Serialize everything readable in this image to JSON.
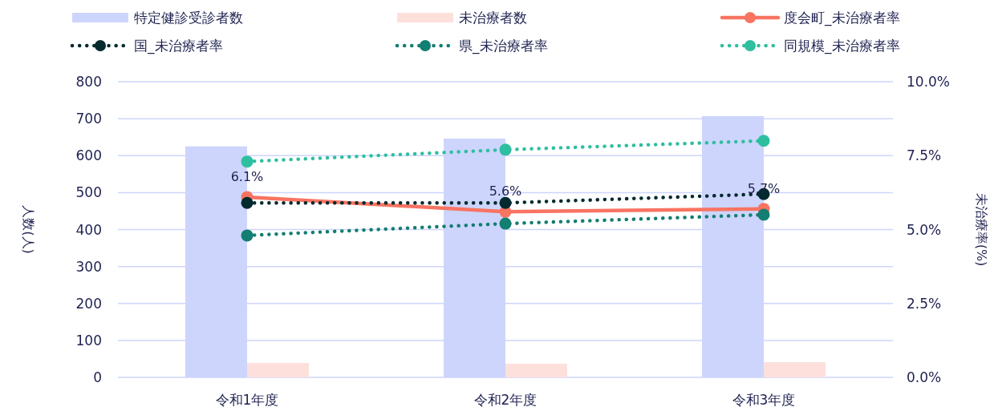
{
  "chart_data": {
    "type": "bar",
    "categories": [
      "令和1年度",
      "令和2年度",
      "令和3年度"
    ],
    "ylabel": "人数(人)",
    "y2label": "未治療率(%)",
    "ylim": [
      0,
      800
    ],
    "yticks": [
      0,
      100,
      200,
      300,
      400,
      500,
      600,
      700,
      800
    ],
    "y2lim": [
      0,
      10
    ],
    "y2ticks": [
      {
        "value": 0,
        "label": "0.0%"
      },
      {
        "value": 2.5,
        "label": "2.5%"
      },
      {
        "value": 5,
        "label": "5.0%"
      },
      {
        "value": 7.5,
        "label": "7.5%"
      },
      {
        "value": 10,
        "label": "10.0%"
      }
    ],
    "grid": "y",
    "legend": "top",
    "series": [
      {
        "name": "特定健診受診者数",
        "color": "#cdd5fc",
        "values": [
          625,
          646,
          707
        ]
      },
      {
        "name": "未治療者数",
        "color": "#fde0dc",
        "values": [
          39,
          37,
          41
        ]
      },
      {
        "name": "度会町_未治療者率",
        "type": "line",
        "axis": "y2",
        "color": "#f87462",
        "line_style": "solid",
        "marker": "circle",
        "values": [
          6.1,
          5.6,
          5.7
        ],
        "value_labels": [
          "6.1%",
          "5.6%",
          "5.7%"
        ]
      },
      {
        "name": "国_未治療者率",
        "type": "line",
        "axis": "y2",
        "color": "#032a2e",
        "line_style": "dotted",
        "marker": "circle",
        "values": [
          5.9,
          5.9,
          6.2
        ]
      },
      {
        "name": "県_未治療者率",
        "type": "line",
        "axis": "y2",
        "color": "#137e72",
        "line_style": "dotted",
        "marker": "circle",
        "values": [
          4.8,
          5.2,
          5.5
        ]
      },
      {
        "name": "同規模_未治療者率",
        "type": "line",
        "axis": "y2",
        "color": "#2ebfa0",
        "line_style": "dotted",
        "marker": "circle",
        "values": [
          7.3,
          7.7,
          8.0
        ]
      }
    ]
  }
}
